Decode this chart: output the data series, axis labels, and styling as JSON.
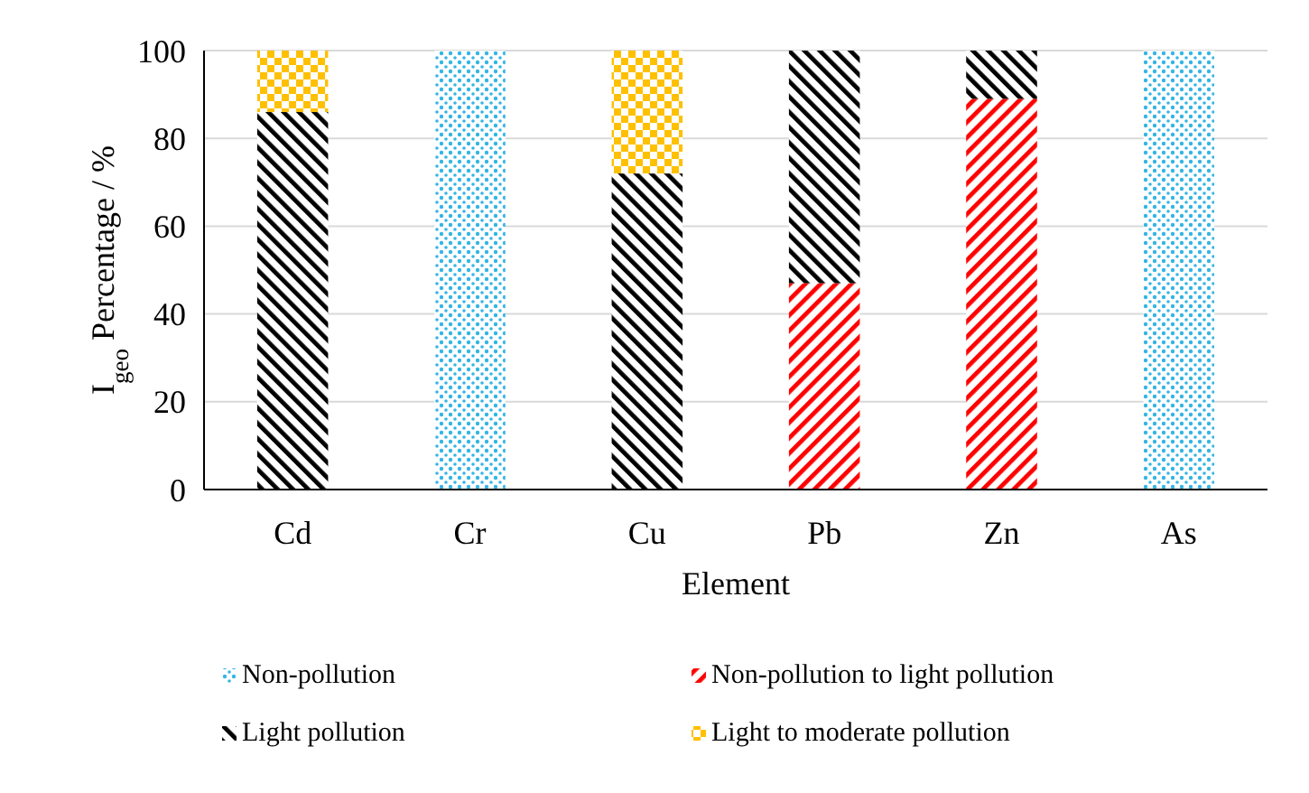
{
  "chart_data": {
    "type": "bar",
    "stacked": true,
    "xlabel": "Element",
    "ylabel": "I$_{geo}$ Percentage / %",
    "categories": [
      "Cd",
      "Cr",
      "Cu",
      "Pb",
      "Zn",
      "As"
    ],
    "series": [
      {
        "name": "Non-pollution",
        "color": "#33b5e5",
        "values": [
          0,
          100,
          0,
          0,
          0,
          100
        ]
      },
      {
        "name": "Non-pollution to light pollution",
        "color": "#ff0000",
        "values": [
          0,
          0,
          0,
          47,
          89,
          0
        ]
      },
      {
        "name": "Light pollution",
        "color": "#000000",
        "values": [
          86,
          0,
          72,
          53,
          11,
          0
        ]
      },
      {
        "name": "Light to moderate pollution",
        "color": "#ffc000",
        "values": [
          14,
          0,
          28,
          0,
          0,
          0
        ]
      }
    ],
    "ylim": [
      0,
      100
    ],
    "yticks": [
      0,
      20,
      40,
      60,
      80,
      100
    ],
    "grid": "y",
    "legend": "bottom"
  }
}
